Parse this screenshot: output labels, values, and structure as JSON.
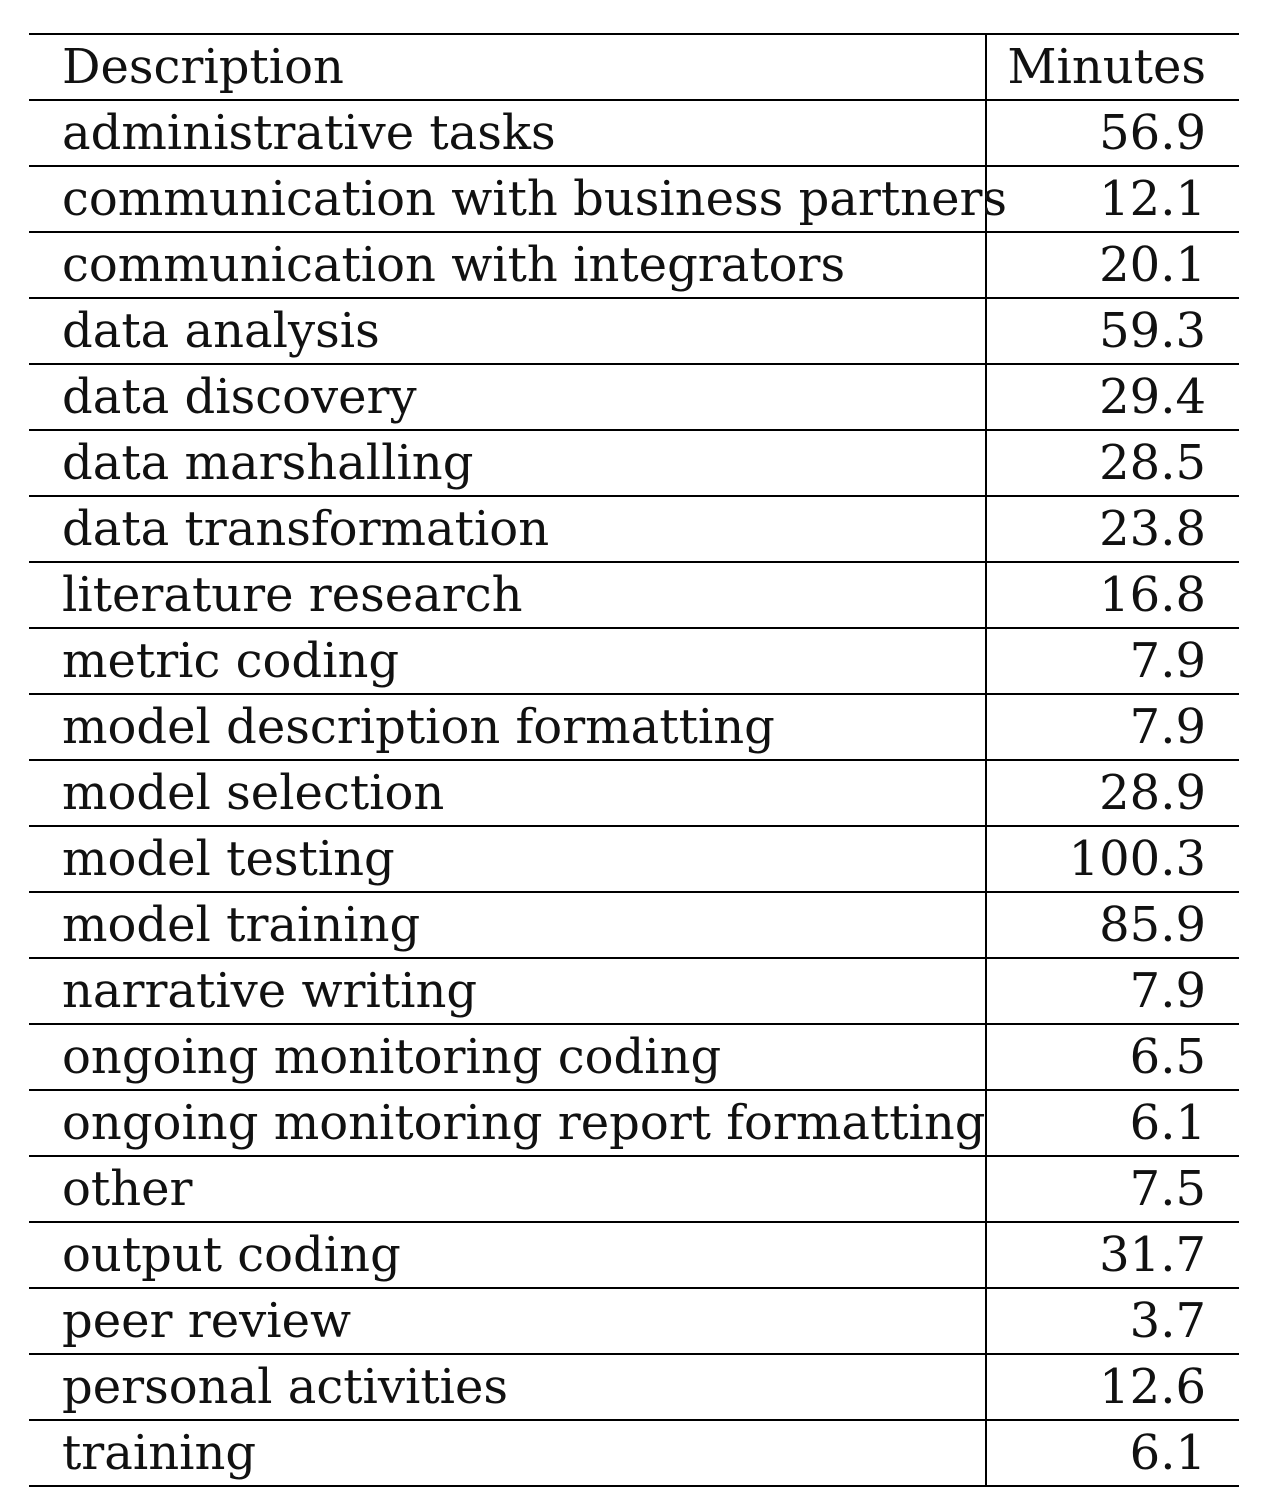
{
  "table": {
    "header": {
      "description": "Description",
      "minutes": "Minutes"
    },
    "rows": [
      {
        "description": "administrative tasks",
        "minutes": "56.9"
      },
      {
        "description": "communication with business partners",
        "minutes": "12.1"
      },
      {
        "description": "communication with integrators",
        "minutes": "20.1"
      },
      {
        "description": "data analysis",
        "minutes": "59.3"
      },
      {
        "description": "data discovery",
        "minutes": "29.4"
      },
      {
        "description": "data marshalling",
        "minutes": "28.5"
      },
      {
        "description": "data transformation",
        "minutes": "23.8"
      },
      {
        "description": "literature research",
        "minutes": "16.8"
      },
      {
        "description": "metric coding",
        "minutes": "7.9"
      },
      {
        "description": "model description formatting",
        "minutes": "7.9"
      },
      {
        "description": "model selection",
        "minutes": "28.9"
      },
      {
        "description": "model testing",
        "minutes": "100.3"
      },
      {
        "description": "model training",
        "minutes": "85.9"
      },
      {
        "description": "narrative writing",
        "minutes": "7.9"
      },
      {
        "description": "ongoing monitoring coding",
        "minutes": "6.5"
      },
      {
        "description": "ongoing monitoring report formatting",
        "minutes": "6.1"
      },
      {
        "description": "other",
        "minutes": "7.5"
      },
      {
        "description": "output coding",
        "minutes": "31.7"
      },
      {
        "description": "peer review",
        "minutes": "3.7"
      },
      {
        "description": "personal activities",
        "minutes": "12.6"
      },
      {
        "description": "training",
        "minutes": "6.1"
      }
    ]
  }
}
